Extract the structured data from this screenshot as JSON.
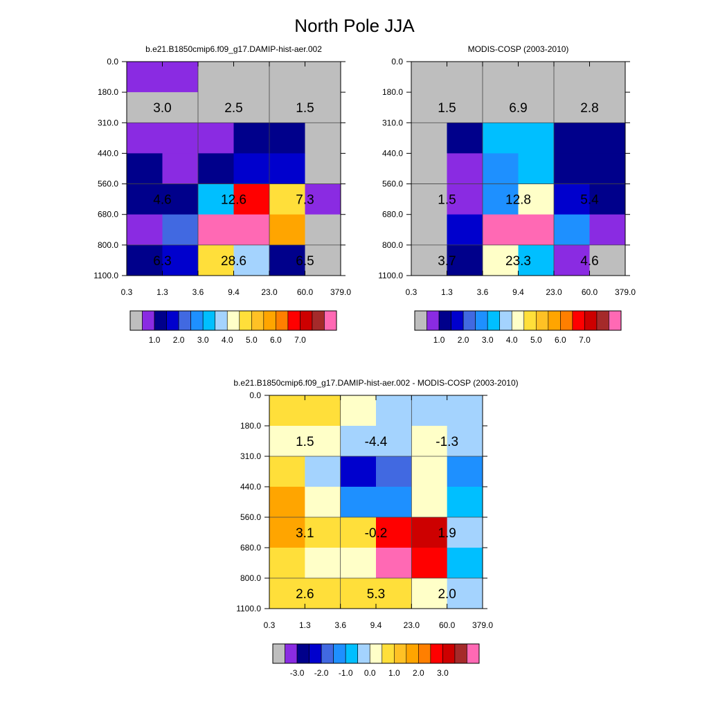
{
  "title": "North Pole JJA",
  "chart_data": [
    {
      "type": "heatmap",
      "title": "b.e21.B1850cmip6.f09_g17.DAMIP-hist-aer.002",
      "x_ticks": [
        "0.3",
        "1.3",
        "3.6",
        "9.4",
        "23.0",
        "60.0",
        "379.0"
      ],
      "y_ticks": [
        "0.0",
        "180.0",
        "310.0",
        "440.0",
        "560.0",
        "680.0",
        "800.0",
        "1100.0"
      ],
      "cells": [
        [
          "#8a2be2",
          "#8a2be2",
          "#bebebe",
          "#bebebe",
          "#bebebe",
          "#bebebe"
        ],
        [
          "#bebebe",
          "#bebebe",
          "#bebebe",
          "#bebebe",
          "#bebebe",
          "#bebebe"
        ],
        [
          "#8a2be2",
          "#8a2be2",
          "#8a2be2",
          "#00008b",
          "#00008b",
          "#bebebe"
        ],
        [
          "#00008b",
          "#8a2be2",
          "#00008b",
          "#0000cd",
          "#0000cd",
          "#bebebe"
        ],
        [
          "#00008b",
          "#00008b",
          "#00bfff",
          "#ff0000",
          "#ffdf3a",
          "#8a2be2"
        ],
        [
          "#8a2be2",
          "#4169e1",
          "#ff69b4",
          "#ff69b4",
          "#ffa500",
          "#bebebe"
        ],
        [
          "#00008b",
          "#0000cd",
          "#ffdf3a",
          "#a4d3fe",
          "#00008b",
          "#bebebe"
        ]
      ],
      "labels": [
        {
          "col": 0,
          "row": 1,
          "text": "3.0"
        },
        {
          "col": 1,
          "row": 1,
          "text": "2.5"
        },
        {
          "col": 2,
          "row": 1,
          "text": "1.5"
        },
        {
          "col": 0,
          "row": 4,
          "text": "4.6"
        },
        {
          "col": 1,
          "row": 4,
          "text": "12.6"
        },
        {
          "col": 2,
          "row": 4,
          "text": "7.3"
        },
        {
          "col": 0,
          "row": 6,
          "text": "6.3"
        },
        {
          "col": 1,
          "row": 6,
          "text": "28.6"
        },
        {
          "col": 2,
          "row": 6,
          "text": "6.5"
        }
      ],
      "colorbar": {
        "colors": [
          "#bebebe",
          "#8a2be2",
          "#00008b",
          "#0000cd",
          "#4169e1",
          "#1e90ff",
          "#00bfff",
          "#a4d3fe",
          "#ffffc8",
          "#ffdf3a",
          "#ffc125",
          "#ffa500",
          "#ff7f00",
          "#ff0000",
          "#cd0000",
          "#a52a2a",
          "#ff69b4"
        ],
        "labels": [
          {
            "after": 2,
            "text": "1.0"
          },
          {
            "after": 4,
            "text": "2.0"
          },
          {
            "after": 6,
            "text": "3.0"
          },
          {
            "after": 8,
            "text": "4.0"
          },
          {
            "after": 10,
            "text": "5.0"
          },
          {
            "after": 12,
            "text": "6.0"
          },
          {
            "after": 14,
            "text": "7.0"
          }
        ]
      }
    },
    {
      "type": "heatmap",
      "title": "MODIS-COSP (2003-2010)",
      "x_ticks": [
        "0.3",
        "1.3",
        "3.6",
        "9.4",
        "23.0",
        "60.0",
        "379.0"
      ],
      "y_ticks": [
        "0.0",
        "180.0",
        "310.0",
        "440.0",
        "560.0",
        "680.0",
        "800.0",
        "1100.0"
      ],
      "cells": [
        [
          "#bebebe",
          "#bebebe",
          "#bebebe",
          "#bebebe",
          "#bebebe",
          "#bebebe"
        ],
        [
          "#bebebe",
          "#bebebe",
          "#bebebe",
          "#bebebe",
          "#bebebe",
          "#bebebe"
        ],
        [
          "#bebebe",
          "#00008b",
          "#00bfff",
          "#00bfff",
          "#00008b",
          "#00008b"
        ],
        [
          "#bebebe",
          "#8a2be2",
          "#1e90ff",
          "#00bfff",
          "#00008b",
          "#00008b"
        ],
        [
          "#bebebe",
          "#8a2be2",
          "#1e90ff",
          "#ffffc8",
          "#0000cd",
          "#00008b"
        ],
        [
          "#bebebe",
          "#0000cd",
          "#ff69b4",
          "#ff69b4",
          "#1e90ff",
          "#8a2be2"
        ],
        [
          "#bebebe",
          "#00008b",
          "#ffffc8",
          "#00bfff",
          "#8a2be2",
          "#bebebe"
        ]
      ],
      "labels": [
        {
          "col": 0,
          "row": 1,
          "text": "1.5"
        },
        {
          "col": 1,
          "row": 1,
          "text": "6.9"
        },
        {
          "col": 2,
          "row": 1,
          "text": "2.8"
        },
        {
          "col": 0,
          "row": 4,
          "text": "1.5"
        },
        {
          "col": 1,
          "row": 4,
          "text": "12.8"
        },
        {
          "col": 2,
          "row": 4,
          "text": "5.4"
        },
        {
          "col": 0,
          "row": 6,
          "text": "3.7"
        },
        {
          "col": 1,
          "row": 6,
          "text": "23.3"
        },
        {
          "col": 2,
          "row": 6,
          "text": "4.6"
        }
      ],
      "colorbar": {
        "colors": [
          "#bebebe",
          "#8a2be2",
          "#00008b",
          "#0000cd",
          "#4169e1",
          "#1e90ff",
          "#00bfff",
          "#a4d3fe",
          "#ffffc8",
          "#ffdf3a",
          "#ffc125",
          "#ffa500",
          "#ff7f00",
          "#ff0000",
          "#cd0000",
          "#a52a2a",
          "#ff69b4"
        ],
        "labels": [
          {
            "after": 2,
            "text": "1.0"
          },
          {
            "after": 4,
            "text": "2.0"
          },
          {
            "after": 6,
            "text": "3.0"
          },
          {
            "after": 8,
            "text": "4.0"
          },
          {
            "after": 10,
            "text": "5.0"
          },
          {
            "after": 12,
            "text": "6.0"
          },
          {
            "after": 14,
            "text": "7.0"
          }
        ]
      }
    },
    {
      "type": "heatmap",
      "title": "b.e21.B1850cmip6.f09_g17.DAMIP-hist-aer.002 - MODIS-COSP (2003-2010)",
      "x_ticks": [
        "0.3",
        "1.3",
        "3.6",
        "9.4",
        "23.0",
        "60.0",
        "379.0"
      ],
      "y_ticks": [
        "0.0",
        "180.0",
        "310.0",
        "440.0",
        "560.0",
        "680.0",
        "800.0",
        "1100.0"
      ],
      "cells": [
        [
          "#ffdf3a",
          "#ffdf3a",
          "#ffffc8",
          "#a4d3fe",
          "#a4d3fe",
          "#a4d3fe"
        ],
        [
          "#ffffc8",
          "#ffffc8",
          "#a4d3fe",
          "#a4d3fe",
          "#ffffc8",
          "#a4d3fe"
        ],
        [
          "#ffdf3a",
          "#a4d3fe",
          "#0000cd",
          "#4169e1",
          "#ffffc8",
          "#1e90ff"
        ],
        [
          "#ffa500",
          "#ffffc8",
          "#1e90ff",
          "#1e90ff",
          "#ffffc8",
          "#00bfff"
        ],
        [
          "#ffa500",
          "#ffdf3a",
          "#ffdf3a",
          "#ff0000",
          "#cd0000",
          "#a4d3fe"
        ],
        [
          "#ffdf3a",
          "#ffffc8",
          "#ffffc8",
          "#ff69b4",
          "#ff0000",
          "#00bfff"
        ],
        [
          "#ffdf3a",
          "#ffdf3a",
          "#ffdf3a",
          "#ffdf3a",
          "#ffffc8",
          "#a4d3fe"
        ]
      ],
      "labels": [
        {
          "col": 0,
          "row": 1,
          "text": "1.5"
        },
        {
          "col": 1,
          "row": 1,
          "text": "-4.4"
        },
        {
          "col": 2,
          "row": 1,
          "text": "-1.3"
        },
        {
          "col": 0,
          "row": 4,
          "text": "3.1"
        },
        {
          "col": 1,
          "row": 4,
          "text": "-0.2"
        },
        {
          "col": 2,
          "row": 4,
          "text": "1.9"
        },
        {
          "col": 0,
          "row": 6,
          "text": "2.6"
        },
        {
          "col": 1,
          "row": 6,
          "text": "5.3"
        },
        {
          "col": 2,
          "row": 6,
          "text": "2.0"
        }
      ],
      "colorbar": {
        "colors": [
          "#bebebe",
          "#8a2be2",
          "#00008b",
          "#0000cd",
          "#4169e1",
          "#1e90ff",
          "#00bfff",
          "#a4d3fe",
          "#ffffc8",
          "#ffdf3a",
          "#ffc125",
          "#ffa500",
          "#ff7f00",
          "#ff0000",
          "#cd0000",
          "#a52a2a",
          "#ff69b4"
        ],
        "labels": [
          {
            "after": 2,
            "text": "-3.0"
          },
          {
            "after": 4,
            "text": "-2.0"
          },
          {
            "after": 6,
            "text": "-1.0"
          },
          {
            "after": 8,
            "text": "0.0"
          },
          {
            "after": 10,
            "text": "1.0"
          },
          {
            "after": 12,
            "text": "2.0"
          },
          {
            "after": 14,
            "text": "3.0"
          }
        ]
      }
    }
  ]
}
